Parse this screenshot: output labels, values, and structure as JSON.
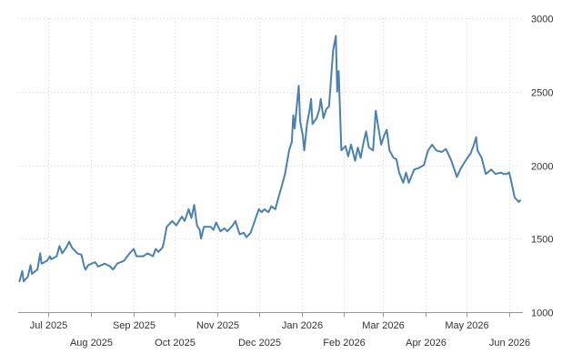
{
  "chart_data": {
    "type": "line",
    "title": "",
    "xlabel": "",
    "ylabel": "",
    "grid": true,
    "x_range": [
      "2025-06-09",
      "2026-06-11"
    ],
    "ylim": [
      1000,
      3000
    ],
    "y_ticks": [
      1000,
      1500,
      2000,
      2500,
      3000
    ],
    "x_ticks": [
      {
        "date": "2025-07-01",
        "label": "Jul 2025",
        "row": 1
      },
      {
        "date": "2025-08-01",
        "label": "Aug 2025",
        "row": 2
      },
      {
        "date": "2025-09-01",
        "label": "Sep 2025",
        "row": 1
      },
      {
        "date": "2025-10-01",
        "label": "Oct 2025",
        "row": 2
      },
      {
        "date": "2025-11-01",
        "label": "Nov 2025",
        "row": 1
      },
      {
        "date": "2025-12-01",
        "label": "Dec 2025",
        "row": 2
      },
      {
        "date": "2026-01-01",
        "label": "Jan 2026",
        "row": 1
      },
      {
        "date": "2026-02-01",
        "label": "Feb 2026",
        "row": 2
      },
      {
        "date": "2026-03-01",
        "label": "Mar 2026",
        "row": 1
      },
      {
        "date": "2026-04-01",
        "label": "Apr 2026",
        "row": 2
      },
      {
        "date": "2026-05-01",
        "label": "May 2026",
        "row": 1
      },
      {
        "date": "2026-06-01",
        "label": "Jun 2026",
        "row": 2
      }
    ],
    "series": [
      {
        "color": "#4a81b3",
        "points": [
          [
            "2025-06-10",
            1210
          ],
          [
            "2025-06-12",
            1280
          ],
          [
            "2025-06-13",
            1210
          ],
          [
            "2025-06-16",
            1240
          ],
          [
            "2025-06-18",
            1320
          ],
          [
            "2025-06-19",
            1260
          ],
          [
            "2025-06-23",
            1290
          ],
          [
            "2025-06-25",
            1400
          ],
          [
            "2025-06-26",
            1330
          ],
          [
            "2025-06-30",
            1350
          ],
          [
            "2025-07-02",
            1380
          ],
          [
            "2025-07-03",
            1360
          ],
          [
            "2025-07-07",
            1380
          ],
          [
            "2025-07-09",
            1450
          ],
          [
            "2025-07-11",
            1400
          ],
          [
            "2025-07-14",
            1440
          ],
          [
            "2025-07-16",
            1480
          ],
          [
            "2025-07-18",
            1440
          ],
          [
            "2025-07-22",
            1400
          ],
          [
            "2025-07-25",
            1390
          ],
          [
            "2025-07-27",
            1310
          ],
          [
            "2025-07-28",
            1290
          ],
          [
            "2025-07-30",
            1320
          ],
          [
            "2025-08-04",
            1340
          ],
          [
            "2025-08-06",
            1310
          ],
          [
            "2025-08-11",
            1330
          ],
          [
            "2025-08-15",
            1310
          ],
          [
            "2025-08-17",
            1290
          ],
          [
            "2025-08-20",
            1330
          ],
          [
            "2025-08-25",
            1350
          ],
          [
            "2025-08-29",
            1400
          ],
          [
            "2025-09-01",
            1430
          ],
          [
            "2025-09-03",
            1380
          ],
          [
            "2025-09-08",
            1380
          ],
          [
            "2025-09-11",
            1400
          ],
          [
            "2025-09-15",
            1380
          ],
          [
            "2025-09-17",
            1430
          ],
          [
            "2025-09-19",
            1410
          ],
          [
            "2025-09-22",
            1440
          ],
          [
            "2025-09-23",
            1480
          ],
          [
            "2025-09-25",
            1580
          ],
          [
            "2025-09-29",
            1620
          ],
          [
            "2025-10-02",
            1590
          ],
          [
            "2025-10-06",
            1650
          ],
          [
            "2025-10-08",
            1620
          ],
          [
            "2025-10-11",
            1700
          ],
          [
            "2025-10-13",
            1640
          ],
          [
            "2025-10-15",
            1730
          ],
          [
            "2025-10-17",
            1590
          ],
          [
            "2025-10-19",
            1560
          ],
          [
            "2025-10-20",
            1500
          ],
          [
            "2025-10-22",
            1580
          ],
          [
            "2025-10-27",
            1580
          ],
          [
            "2025-10-29",
            1560
          ],
          [
            "2025-10-31",
            1610
          ],
          [
            "2025-11-03",
            1550
          ],
          [
            "2025-11-06",
            1570
          ],
          [
            "2025-11-08",
            1550
          ],
          [
            "2025-11-12",
            1590
          ],
          [
            "2025-11-14",
            1620
          ],
          [
            "2025-11-17",
            1530
          ],
          [
            "2025-11-20",
            1540
          ],
          [
            "2025-11-22",
            1510
          ],
          [
            "2025-11-25",
            1540
          ],
          [
            "2025-11-28",
            1620
          ],
          [
            "2025-12-01",
            1700
          ],
          [
            "2025-12-03",
            1680
          ],
          [
            "2025-12-05",
            1700
          ],
          [
            "2025-12-08",
            1680
          ],
          [
            "2025-12-10",
            1720
          ],
          [
            "2025-12-13",
            1700
          ],
          [
            "2025-12-15",
            1770
          ],
          [
            "2025-12-18",
            1870
          ],
          [
            "2025-12-20",
            1940
          ],
          [
            "2025-12-23",
            2100
          ],
          [
            "2025-12-25",
            2160
          ],
          [
            "2025-12-26",
            2340
          ],
          [
            "2025-12-27",
            2250
          ],
          [
            "2025-12-30",
            2540
          ],
          [
            "2025-12-31",
            2300
          ],
          [
            "2026-01-02",
            2200
          ],
          [
            "2026-01-03",
            2100
          ],
          [
            "2026-01-05",
            2280
          ],
          [
            "2026-01-07",
            2380
          ],
          [
            "2026-01-08",
            2450
          ],
          [
            "2026-01-09",
            2280
          ],
          [
            "2026-01-12",
            2320
          ],
          [
            "2026-01-14",
            2380
          ],
          [
            "2026-01-15",
            2450
          ],
          [
            "2026-01-17",
            2320
          ],
          [
            "2026-01-19",
            2380
          ],
          [
            "2026-01-21",
            2400
          ],
          [
            "2026-01-24",
            2780
          ],
          [
            "2026-01-26",
            2880
          ],
          [
            "2026-01-27",
            2500
          ],
          [
            "2026-01-28",
            2640
          ],
          [
            "2026-01-30",
            2100
          ],
          [
            "2026-02-02",
            2130
          ],
          [
            "2026-02-04",
            2060
          ],
          [
            "2026-02-06",
            2140
          ],
          [
            "2026-02-09",
            2030
          ],
          [
            "2026-02-11",
            2120
          ],
          [
            "2026-02-13",
            2050
          ],
          [
            "2026-02-15",
            2150
          ],
          [
            "2026-02-17",
            2230
          ],
          [
            "2026-02-19",
            2120
          ],
          [
            "2026-02-22",
            2100
          ],
          [
            "2026-02-24",
            2370
          ],
          [
            "2026-02-26",
            2250
          ],
          [
            "2026-02-28",
            2140
          ],
          [
            "2026-03-02",
            2200
          ],
          [
            "2026-03-04",
            2240
          ],
          [
            "2026-03-06",
            2100
          ],
          [
            "2026-03-09",
            2050
          ],
          [
            "2026-03-11",
            2040
          ],
          [
            "2026-03-13",
            1950
          ],
          [
            "2026-03-16",
            1880
          ],
          [
            "2026-03-18",
            1950
          ],
          [
            "2026-03-20",
            1880
          ],
          [
            "2026-03-24",
            1970
          ],
          [
            "2026-03-27",
            1980
          ],
          [
            "2026-03-31",
            2000
          ],
          [
            "2026-04-03",
            2100
          ],
          [
            "2026-04-06",
            2140
          ],
          [
            "2026-04-09",
            2100
          ],
          [
            "2026-04-13",
            2090
          ],
          [
            "2026-04-16",
            2110
          ],
          [
            "2026-04-20",
            2030
          ],
          [
            "2026-04-24",
            1920
          ],
          [
            "2026-04-27",
            1980
          ],
          [
            "2026-05-01",
            2040
          ],
          [
            "2026-05-04",
            2080
          ],
          [
            "2026-05-06",
            2130
          ],
          [
            "2026-05-08",
            2190
          ],
          [
            "2026-05-09",
            2100
          ],
          [
            "2026-05-12",
            2050
          ],
          [
            "2026-05-15",
            1940
          ],
          [
            "2026-05-19",
            1970
          ],
          [
            "2026-05-22",
            1940
          ],
          [
            "2026-05-26",
            1950
          ],
          [
            "2026-05-28",
            1940
          ],
          [
            "2026-05-30",
            1940
          ],
          [
            "2026-06-01",
            1950
          ],
          [
            "2026-06-03",
            1870
          ],
          [
            "2026-06-05",
            1780
          ],
          [
            "2026-06-08",
            1750
          ],
          [
            "2026-06-09",
            1760
          ]
        ]
      }
    ]
  }
}
